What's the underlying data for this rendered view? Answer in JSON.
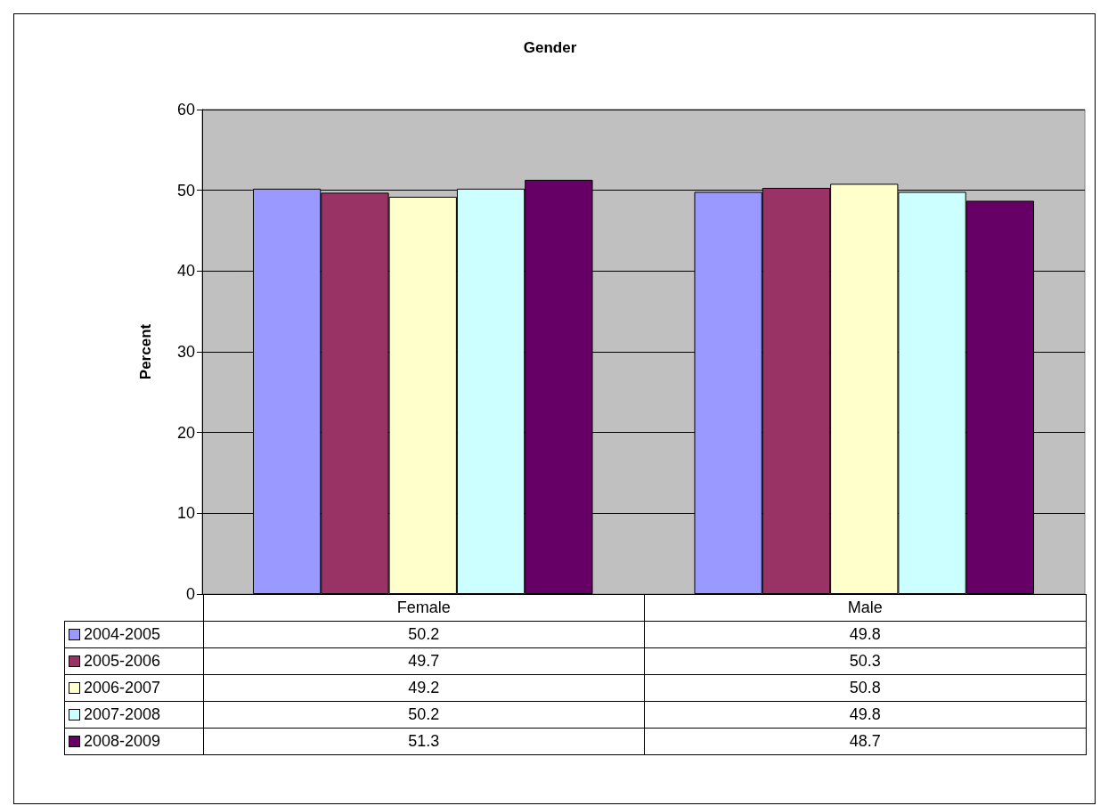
{
  "chart_data": {
    "type": "bar",
    "title": "Gender",
    "ylabel": "Percent",
    "categories": [
      "Female",
      "Male"
    ],
    "series": [
      {
        "name": "2004-2005",
        "color": "#9999ff",
        "values": [
          50.2,
          49.8
        ]
      },
      {
        "name": "2005-2006",
        "color": "#993366",
        "values": [
          49.7,
          50.3
        ]
      },
      {
        "name": "2006-2007",
        "color": "#ffffcc",
        "values": [
          49.2,
          50.8
        ]
      },
      {
        "name": "2007-2008",
        "color": "#ccffff",
        "values": [
          50.2,
          49.8
        ]
      },
      {
        "name": "2008-2009",
        "color": "#660066",
        "values": [
          51.3,
          48.7
        ]
      }
    ],
    "ylim": [
      0,
      60
    ],
    "yticks": [
      0,
      10,
      20,
      30,
      40,
      50,
      60
    ],
    "grid": "y",
    "legend": "bottom",
    "data_labels": true
  }
}
